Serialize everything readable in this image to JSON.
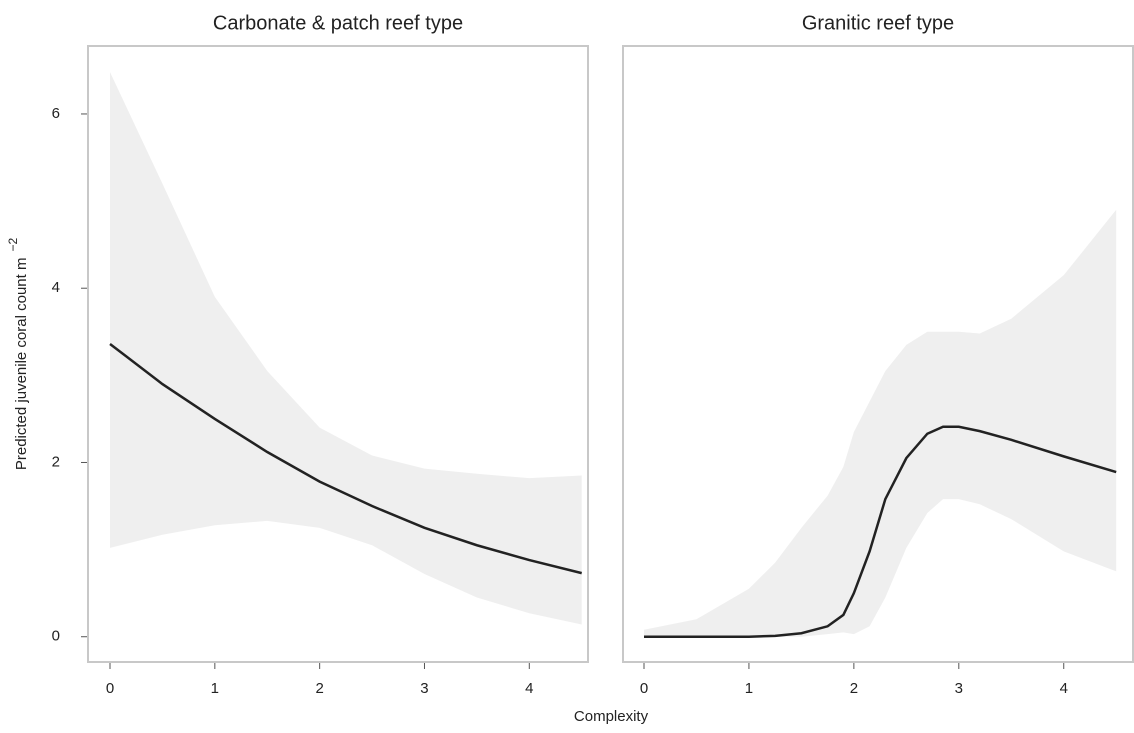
{
  "chart_data": [
    {
      "type": "line",
      "title": "Carbonate & patch reef type",
      "x": [
        0,
        0.5,
        1,
        1.5,
        2,
        2.5,
        3,
        3.5,
        4,
        4.5
      ],
      "values": [
        3.36,
        2.9,
        2.5,
        2.12,
        1.78,
        1.5,
        1.25,
        1.05,
        0.88,
        0.73
      ],
      "upper": [
        6.48,
        5.2,
        3.9,
        3.05,
        2.4,
        2.08,
        1.93,
        1.87,
        1.82,
        1.85
      ],
      "lower": [
        1.02,
        1.17,
        1.28,
        1.33,
        1.25,
        1.05,
        0.72,
        0.45,
        0.27,
        0.14
      ],
      "color": "#222222",
      "band_color": "#efefef",
      "xlim": [
        -0.21,
        4.56
      ],
      "ylim": [
        -0.29,
        6.78
      ],
      "xticks": [
        0,
        1,
        2,
        3,
        4
      ],
      "yticks": [
        0,
        2,
        4,
        6
      ]
    },
    {
      "type": "line",
      "title": "Granitic reef type",
      "x": [
        0,
        0.5,
        1,
        1.25,
        1.5,
        1.75,
        1.9,
        2,
        2.15,
        2.3,
        2.5,
        2.7,
        2.85,
        3,
        3.2,
        3.5,
        4,
        4.5
      ],
      "values": [
        0,
        0,
        0,
        0.01,
        0.04,
        0.12,
        0.25,
        0.5,
        0.98,
        1.58,
        2.05,
        2.33,
        2.41,
        2.41,
        2.36,
        2.26,
        2.07,
        1.89
      ],
      "upper": [
        0.08,
        0.2,
        0.55,
        0.85,
        1.25,
        1.62,
        1.95,
        2.35,
        2.7,
        3.05,
        3.35,
        3.5,
        3.5,
        3.5,
        3.48,
        3.65,
        4.15,
        4.9
      ],
      "lower": [
        0,
        0,
        0,
        0,
        0,
        0.03,
        0.05,
        0.03,
        0.12,
        0.45,
        1.02,
        1.42,
        1.58,
        1.58,
        1.52,
        1.35,
        0.98,
        0.75
      ],
      "color": "#222222",
      "band_color": "#efefef",
      "xlim": [
        -0.2,
        4.66
      ],
      "ylim": [
        -0.29,
        6.78
      ],
      "xticks": [
        0,
        1,
        2,
        3,
        4
      ]
    }
  ],
  "xlabel": "Complexity",
  "ylabel": "Predicted juvenile coral count m",
  "ylabel_superscript": "−2"
}
